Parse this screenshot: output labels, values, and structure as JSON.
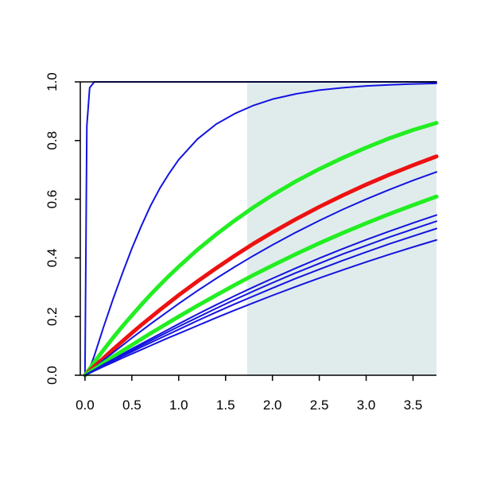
{
  "chart_data": {
    "type": "line",
    "title": "",
    "xlabel": "",
    "ylabel": "",
    "xlim": [
      -0.05,
      3.75
    ],
    "ylim": [
      0,
      1
    ],
    "x_ticks": [
      0.0,
      0.5,
      1.0,
      1.5,
      2.0,
      2.5,
      3.0,
      3.5
    ],
    "x_tick_labels": [
      "0.0",
      "0.5",
      "1.0",
      "1.5",
      "2.0",
      "2.5",
      "3.0",
      "3.5"
    ],
    "y_ticks": [
      0.0,
      0.2,
      0.4,
      0.6,
      0.8,
      1.0
    ],
    "y_tick_labels": [
      "0.0",
      "0.2",
      "0.4",
      "0.6",
      "0.8",
      "1.0"
    ],
    "grid": false,
    "shaded_region": {
      "x": [
        1.73,
        3.75
      ],
      "color": "#e0ecec"
    },
    "x": [
      0,
      0.02,
      0.05,
      0.1,
      0.2,
      0.3,
      0.4,
      0.5,
      0.6,
      0.7,
      0.8,
      0.9,
      1.0,
      1.2,
      1.4,
      1.6,
      1.8,
      2.0,
      2.25,
      2.5,
      2.75,
      3.0,
      3.25,
      3.5,
      3.75
    ],
    "series": [
      {
        "color": "#1414e0",
        "width": 2,
        "values": [
          0,
          0.85,
          0.98,
          1.0,
          1.0,
          1.0,
          1.0,
          1.0,
          1.0,
          1.0,
          1.0,
          1.0,
          1.0,
          1.0,
          1.0,
          1.0,
          1.0,
          1.0,
          1.0,
          1.0,
          1.0,
          1.0,
          1.0,
          1.0,
          1.0
        ]
      },
      {
        "color": "#1414e0",
        "width": 2,
        "values": [
          0,
          0.006,
          0.023,
          0.067,
          0.166,
          0.26,
          0.348,
          0.432,
          0.508,
          0.578,
          0.638,
          0.689,
          0.735,
          0.805,
          0.856,
          0.892,
          0.92,
          0.941,
          0.959,
          0.972,
          0.98,
          0.986,
          0.99,
          0.993,
          0.995
        ]
      },
      {
        "color": "#22ee22",
        "width": 5,
        "values": [
          0,
          0.009,
          0.022,
          0.045,
          0.087,
          0.128,
          0.167,
          0.204,
          0.24,
          0.275,
          0.308,
          0.34,
          0.37,
          0.428,
          0.48,
          0.528,
          0.573,
          0.614,
          0.661,
          0.703,
          0.741,
          0.776,
          0.808,
          0.836,
          0.86
        ]
      },
      {
        "color": "#ee1111",
        "width": 5,
        "values": [
          0,
          0.006,
          0.015,
          0.03,
          0.059,
          0.088,
          0.116,
          0.144,
          0.171,
          0.197,
          0.223,
          0.248,
          0.273,
          0.32,
          0.365,
          0.408,
          0.449,
          0.487,
          0.532,
          0.574,
          0.613,
          0.65,
          0.684,
          0.716,
          0.746
        ]
      },
      {
        "color": "#1414e0",
        "width": 2,
        "values": [
          0,
          0.005,
          0.013,
          0.026,
          0.052,
          0.077,
          0.102,
          0.127,
          0.151,
          0.175,
          0.198,
          0.221,
          0.244,
          0.288,
          0.33,
          0.37,
          0.408,
          0.444,
          0.487,
          0.527,
          0.565,
          0.6,
          0.633,
          0.664,
          0.693
        ]
      },
      {
        "color": "#22ee22",
        "width": 5,
        "values": [
          0,
          0.004,
          0.011,
          0.021,
          0.042,
          0.063,
          0.083,
          0.103,
          0.123,
          0.143,
          0.162,
          0.181,
          0.2,
          0.237,
          0.273,
          0.308,
          0.342,
          0.374,
          0.413,
          0.45,
          0.485,
          0.518,
          0.55,
          0.58,
          0.609
        ]
      },
      {
        "color": "#1414e0",
        "width": 2,
        "values": [
          0,
          0.0037,
          0.0092,
          0.018,
          0.037,
          0.054,
          0.072,
          0.09,
          0.107,
          0.124,
          0.141,
          0.158,
          0.175,
          0.208,
          0.24,
          0.271,
          0.301,
          0.33,
          0.365,
          0.399,
          0.431,
          0.462,
          0.491,
          0.519,
          0.546
        ]
      },
      {
        "color": "#1414e0",
        "width": 2,
        "values": [
          0,
          0.0035,
          0.0087,
          0.017,
          0.035,
          0.052,
          0.069,
          0.085,
          0.102,
          0.118,
          0.134,
          0.15,
          0.166,
          0.197,
          0.228,
          0.258,
          0.287,
          0.315,
          0.349,
          0.381,
          0.413,
          0.442,
          0.471,
          0.498,
          0.525
        ]
      },
      {
        "color": "#1414e0",
        "width": 2,
        "values": [
          0,
          0.0033,
          0.0082,
          0.016,
          0.033,
          0.049,
          0.065,
          0.08,
          0.096,
          0.111,
          0.126,
          0.141,
          0.156,
          0.186,
          0.215,
          0.243,
          0.27,
          0.297,
          0.33,
          0.361,
          0.391,
          0.42,
          0.448,
          0.474,
          0.5
        ]
      },
      {
        "color": "#1414e0",
        "width": 2,
        "values": [
          0,
          0.003,
          0.0075,
          0.015,
          0.03,
          0.044,
          0.059,
          0.073,
          0.087,
          0.101,
          0.115,
          0.129,
          0.142,
          0.169,
          0.196,
          0.222,
          0.247,
          0.272,
          0.302,
          0.331,
          0.359,
          0.386,
          0.412,
          0.437,
          0.461
        ]
      }
    ]
  }
}
